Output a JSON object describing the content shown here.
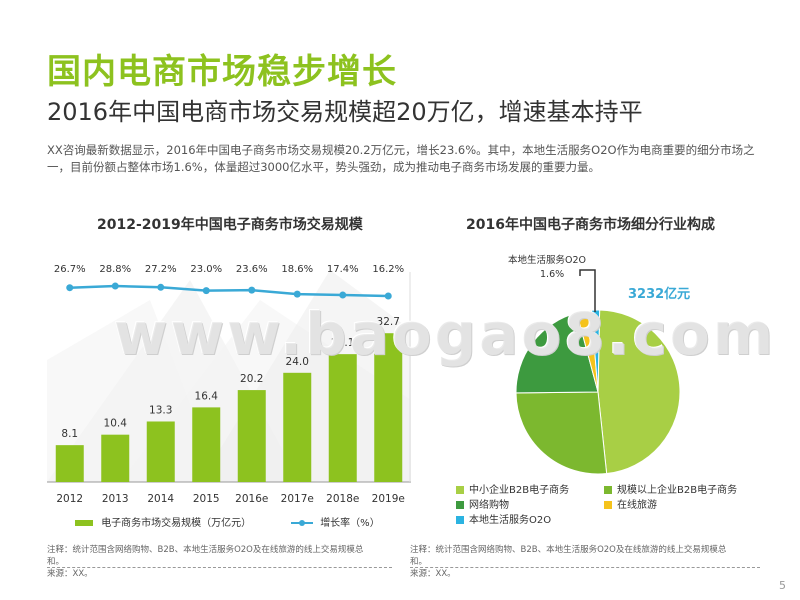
{
  "heading": "国内电商市场稳步增长",
  "subheading": "2016年中国电商市场交易规模超20万亿，增速基本持平",
  "intro": "XX咨询最新数据显示，2016年中国电子商务市场交易规模20.2万亿元，增长23.6%。其中，本地生活服务O2O作为电商重要的细分市场之一，目前份额占整体市场1.6%，体量超过3000亿水平，势头强劲，成为推动电子商务市场发展的重要力量。",
  "watermark": "www.baogao8.com",
  "page_number": "5",
  "chart_data": [
    {
      "type": "bar",
      "title": "2012-2019年中国电子商务市场交易规模",
      "categories": [
        "2012",
        "2013",
        "2014",
        "2015",
        "2016e",
        "2017e",
        "2018e",
        "2019e"
      ],
      "series": [
        {
          "name": "电子商务市场交易规模（万亿元）",
          "type": "bar",
          "values": [
            8.1,
            10.4,
            13.3,
            16.4,
            20.2,
            24.0,
            28.1,
            32.7
          ],
          "labels": [
            "8.1",
            "10.4",
            "13.3",
            "16.4",
            "20.2",
            "24.0",
            "28.1",
            "32.7"
          ],
          "color": "#8dc21f"
        },
        {
          "name": "增长率（%）",
          "type": "line",
          "values": [
            26.7,
            28.8,
            27.2,
            23.0,
            23.6,
            18.6,
            17.4,
            16.2
          ],
          "labels": [
            "26.7%",
            "28.8%",
            "27.2%",
            "23.0%",
            "23.6%",
            "18.6%",
            "17.4%",
            "16.2%"
          ],
          "color": "#3aa9d6"
        }
      ],
      "ylim": [
        0,
        35
      ],
      "legend_position": "bottom",
      "note": "注释：统计范围含网络购物、B2B、本地生活服务O2O及在线旅游的线上交易规模总和。",
      "source": "来源：XX。"
    },
    {
      "type": "pie",
      "title": "2016年中国电子商务市场细分行业构成",
      "center_label": "3232亿元",
      "callout_label": "本地生活服务O2O",
      "callout_value": "1.6%",
      "slices": [
        {
          "name": "中小企业B2B电子商务",
          "value": 48.0,
          "color": "#a8cf45"
        },
        {
          "name": "规模以上企业B2B电子商务",
          "value": 26.5,
          "color": "#7cb82f"
        },
        {
          "name": "网络购物",
          "value": 21.0,
          "color": "#3d9a3f"
        },
        {
          "name": "在线旅游",
          "value": 2.9,
          "color": "#f5c31c"
        },
        {
          "name": "本地生活服务O2O",
          "value": 1.6,
          "color": "#2bb3e1"
        }
      ],
      "legend_position": "bottom",
      "note": "注释：统计范围含网络购物、B2B、本地生活服务O2O及在线旅游的线上交易规模总和。",
      "source": "来源：XX。"
    }
  ]
}
